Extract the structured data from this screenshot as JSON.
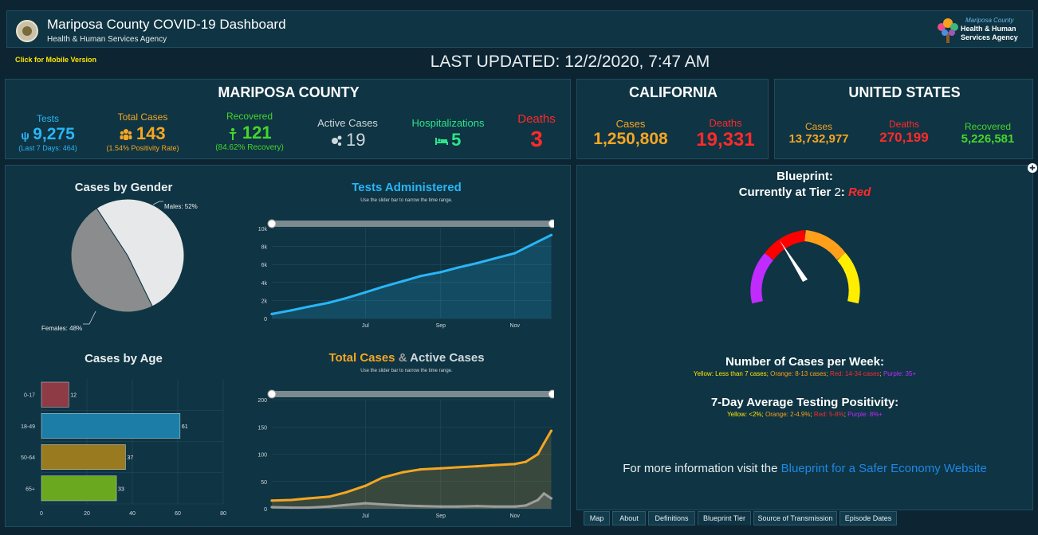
{
  "header": {
    "title": "Mariposa County COVID-19 Dashboard",
    "subtitle": "Health & Human Services Agency",
    "logo_text": [
      "Mariposa County",
      "Health & Human",
      "Services Agency"
    ]
  },
  "topbar": {
    "mobile_link": "Click for Mobile Version",
    "last_updated": "LAST UPDATED: 12/2/2020, 7:47 AM"
  },
  "mariposa": {
    "title": "MARIPOSA COUNTY",
    "tests": {
      "label": "Tests",
      "value": "9,275",
      "sub": "(Last 7 Days: 464)"
    },
    "total_cases": {
      "label": "Total Cases",
      "value": "143",
      "sub": "(1.54% Positivity Rate)"
    },
    "recovered": {
      "label": "Recovered",
      "value": "121",
      "sub": "(84.62% Recovery)"
    },
    "active_cases": {
      "label": "Active Cases",
      "value": "19"
    },
    "hospitalizations": {
      "label": "Hospitalizations",
      "value": "5"
    },
    "deaths": {
      "label": "Deaths",
      "value": "3"
    }
  },
  "california": {
    "title": "CALIFORNIA",
    "cases": {
      "label": "Cases",
      "value": "1,250,808"
    },
    "deaths": {
      "label": "Deaths",
      "value": "19,331"
    }
  },
  "us": {
    "title": "UNITED STATES",
    "cases": {
      "label": "Cases",
      "value": "13,732,977"
    },
    "deaths": {
      "label": "Deaths",
      "value": "270,199"
    },
    "recovered": {
      "label": "Recovered",
      "value": "5,226,581"
    }
  },
  "colors": {
    "tests": "#29b6f6",
    "cases": "#f5a623",
    "recovered": "#44d62c",
    "deaths": "#ff2a2a",
    "hosp": "#2de58b",
    "active": "#cfd8dc"
  },
  "gender": {
    "title": "Cases by Gender",
    "males_label": "Males: 52%",
    "females_label": "Females: 48%",
    "males": 52,
    "females": 48
  },
  "tests_chart": {
    "title": "Tests Administered",
    "hint": "Use the slider bar to narrow the time range."
  },
  "cases_chart": {
    "title_a": "Total Cases",
    "title_amp": " & ",
    "title_b": "Active Cases",
    "hint": "Use the slider bar to narrow the time range."
  },
  "age_chart": {
    "title": "Cases by Age"
  },
  "blueprint": {
    "heading": "Blueprint:",
    "tier_prefix": "Currently at Tier ",
    "tier_num": "2",
    "tier_sep": ": ",
    "tier_color": "Red",
    "cases_title": "Number of Cases per Week:",
    "cases_legend": [
      {
        "text": "Yellow: Less than 7 cases",
        "color": "#ffe600"
      },
      {
        "text": "; ",
        "color": "#ffe600"
      },
      {
        "text": "Orange: 8-13 cases",
        "color": "#ff9f1a"
      },
      {
        "text": "; ",
        "color": "#ffe600"
      },
      {
        "text": "Red: 14-34 cases",
        "color": "#ff2a2a"
      },
      {
        "text": "; ",
        "color": "#ffe600"
      },
      {
        "text": "Purple: 35+",
        "color": "#c02bff"
      }
    ],
    "pos_title": "7-Day Average Testing Positivity:",
    "pos_legend": [
      {
        "text": "Yellow: <2%",
        "color": "#ffe600"
      },
      {
        "text": "; ",
        "color": "#ffe600"
      },
      {
        "text": "Orange: 2-4.9%",
        "color": "#ff9f1a"
      },
      {
        "text": "; ",
        "color": "#ffe600"
      },
      {
        "text": "Red: 5-8%",
        "color": "#ff2a2a"
      },
      {
        "text": "; ",
        "color": "#ffe600"
      },
      {
        "text": "Purple: 8%+",
        "color": "#c02bff"
      }
    ],
    "more_info": "For more information visit the ",
    "link": "Blueprint for a Safer Economy Website"
  },
  "tabs": [
    "Map",
    "About",
    "Definitions",
    "Blueprint Tier",
    "Source of Transmission",
    "Episode Dates"
  ],
  "chart_data": [
    {
      "type": "pie",
      "title": "Cases by Gender",
      "categories": [
        "Males",
        "Females"
      ],
      "values": [
        52,
        48
      ]
    },
    {
      "type": "area",
      "title": "Tests Administered",
      "x_ticks": [
        "Jul",
        "Sep",
        "Nov"
      ],
      "y_ticks": [
        "0",
        "2k",
        "4k",
        "6k",
        "8k",
        "10k"
      ],
      "ylim": [
        0,
        10000
      ],
      "series": [
        {
          "name": "Tests",
          "color": "#29b6f6",
          "x": [
            "Apr 15",
            "May 1",
            "May 15",
            "Jun 1",
            "Jun 15",
            "Jul 1",
            "Jul 15",
            "Aug 1",
            "Aug 15",
            "Sep 1",
            "Sep 15",
            "Oct 1",
            "Oct 15",
            "Nov 1",
            "Nov 15",
            "Dec 1"
          ],
          "values": [
            500,
            900,
            1300,
            1750,
            2250,
            2900,
            3500,
            4150,
            4700,
            5150,
            5650,
            6150,
            6650,
            7250,
            8200,
            9275
          ]
        }
      ]
    },
    {
      "type": "area",
      "title": "Total Cases & Active Cases",
      "x_ticks": [
        "Jul",
        "Sep",
        "Nov"
      ],
      "y_ticks": [
        "0",
        "50",
        "100",
        "150",
        "200"
      ],
      "ylim": [
        0,
        200
      ],
      "series": [
        {
          "name": "Total Cases",
          "color": "#f5a623",
          "x": [
            "Apr 15",
            "May 1",
            "May 15",
            "Jun 1",
            "Jun 15",
            "Jul 1",
            "Jul 15",
            "Aug 1",
            "Aug 15",
            "Sep 1",
            "Sep 15",
            "Oct 1",
            "Oct 15",
            "Nov 1",
            "Nov 10",
            "Nov 20",
            "Nov 25",
            "Dec 1"
          ],
          "values": [
            15,
            16,
            19,
            22,
            30,
            42,
            57,
            67,
            72,
            74,
            76,
            78,
            80,
            82,
            86,
            100,
            120,
            143
          ]
        },
        {
          "name": "Active Cases",
          "color": "#9e9e9e",
          "x": [
            "Apr 15",
            "May 1",
            "May 15",
            "Jun 1",
            "Jun 15",
            "Jul 1",
            "Jul 15",
            "Aug 1",
            "Aug 15",
            "Sep 1",
            "Sep 15",
            "Oct 1",
            "Oct 15",
            "Nov 1",
            "Nov 10",
            "Nov 20",
            "Nov 25",
            "Dec 1"
          ],
          "values": [
            3,
            2,
            2,
            4,
            7,
            10,
            8,
            6,
            5,
            4,
            4,
            5,
            4,
            4,
            6,
            16,
            28,
            19
          ]
        }
      ]
    },
    {
      "type": "bar",
      "title": "Cases by Age",
      "categories": [
        "0-17",
        "18-49",
        "50-64",
        "65+"
      ],
      "values": [
        12,
        61,
        37,
        33
      ],
      "colors": [
        "#8e3b46",
        "#1c7ea6",
        "#9a7a1e",
        "#6aa81f"
      ],
      "x_ticks": [
        "0",
        "20",
        "40",
        "60",
        "80"
      ],
      "xlim": [
        0,
        80
      ]
    }
  ]
}
